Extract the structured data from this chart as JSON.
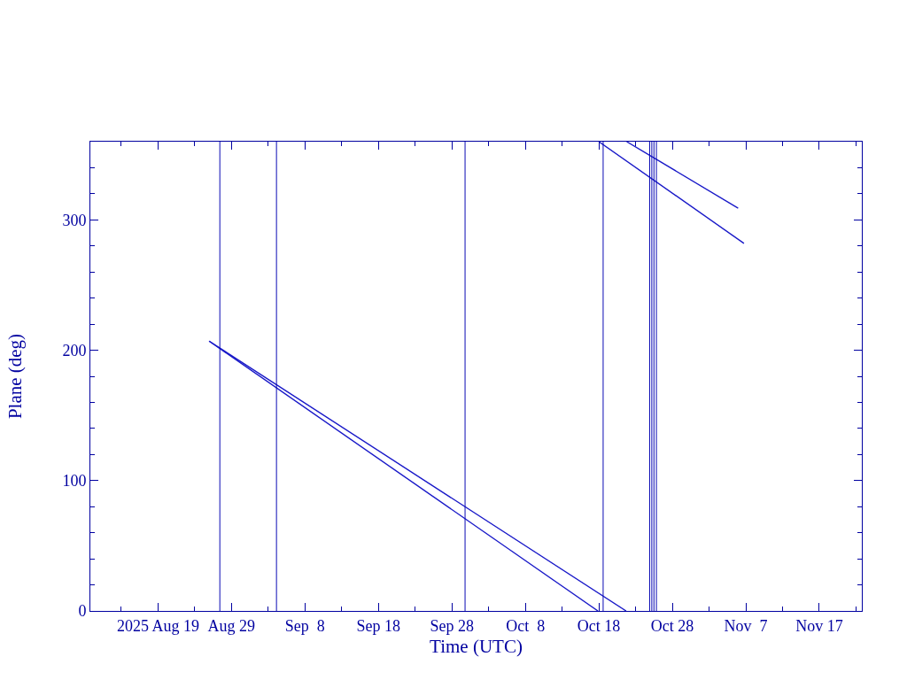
{
  "chart_data": {
    "type": "line",
    "xlabel": "Time (UTC)",
    "ylabel": "Plane (deg)",
    "xlim": [
      "2025-08-09T19:00",
      "2025-11-22T19:00"
    ],
    "ylim": [
      0,
      360
    ],
    "xticks": [
      {
        "value": "2025-08-14",
        "label": null
      },
      {
        "value": "2025-08-19",
        "label": "2025 Aug 19"
      },
      {
        "value": "2025-08-24",
        "label": null
      },
      {
        "value": "2025-08-29",
        "label": "Aug 29"
      },
      {
        "value": "2025-09-03",
        "label": null
      },
      {
        "value": "2025-09-08",
        "label": "Sep  8"
      },
      {
        "value": "2025-09-13",
        "label": null
      },
      {
        "value": "2025-09-18",
        "label": "Sep 18"
      },
      {
        "value": "2025-09-23",
        "label": null
      },
      {
        "value": "2025-09-28",
        "label": "Sep 28"
      },
      {
        "value": "2025-10-03",
        "label": null
      },
      {
        "value": "2025-10-08",
        "label": "Oct  8"
      },
      {
        "value": "2025-10-13",
        "label": null
      },
      {
        "value": "2025-10-18",
        "label": "Oct 18"
      },
      {
        "value": "2025-10-23",
        "label": null
      },
      {
        "value": "2025-10-28",
        "label": "Oct 28"
      },
      {
        "value": "2025-11-02",
        "label": null
      },
      {
        "value": "2025-11-07",
        "label": "Nov  7"
      },
      {
        "value": "2025-11-12",
        "label": null
      },
      {
        "value": "2025-11-17",
        "label": "Nov 17"
      },
      {
        "value": "2025-11-22",
        "label": null
      }
    ],
    "yticks": [
      0,
      {
        "value": 20,
        "label": null
      },
      {
        "value": 40,
        "label": null
      },
      {
        "value": 60,
        "label": null
      },
      {
        "value": 80,
        "label": null
      },
      100,
      {
        "value": 120,
        "label": null
      },
      {
        "value": 140,
        "label": null
      },
      {
        "value": 160,
        "label": null
      },
      {
        "value": 180,
        "label": null
      },
      200,
      {
        "value": 220,
        "label": null
      },
      {
        "value": 240,
        "label": null
      },
      {
        "value": 260,
        "label": null
      },
      {
        "value": 280,
        "label": null
      },
      300,
      {
        "value": 320,
        "label": null
      },
      {
        "value": 340,
        "label": null
      }
    ],
    "series": [
      {
        "color": "#1818c8",
        "x": [
          "2025-08-25T23:00",
          "2025-10-21T17:00",
          "2025-10-21T18:00",
          "2025-10-21T19:00",
          "2025-11-05T23:00"
        ],
        "values": [
          207,
          0,
          null,
          360,
          309
        ]
      },
      {
        "color": "#1818c8",
        "x": [
          "2025-08-25T23:00",
          "2025-10-17T21:00",
          "2025-10-17T22:00",
          "2025-10-18T00:00",
          "2025-11-06T18:00"
        ],
        "values": [
          207,
          0,
          null,
          360,
          282
        ]
      }
    ],
    "ref_lines": [
      {
        "axis": "x",
        "value": "2025-08-27T10:00",
        "color": "#0a0ab4"
      },
      {
        "axis": "x",
        "value": "2025-09-04T03:00",
        "color": "#0a0ab4"
      },
      {
        "axis": "x",
        "value": "2025-09-29T19:00",
        "color": "#0a0ab4"
      },
      {
        "axis": "x",
        "value": "2025-10-18T14:00",
        "color": "#0a0ab4"
      },
      {
        "axis": "x",
        "value": "2025-10-24T22:00",
        "color": "#0a0ab4"
      },
      {
        "axis": "x",
        "value": "2025-10-25T05:00",
        "color": "#0a0ab4"
      },
      {
        "axis": "x",
        "value": "2025-10-25T12:00",
        "color": "#0a0ab4"
      },
      {
        "axis": "x",
        "value": "2025-10-25T20:00",
        "color": "#0a0ab4"
      }
    ]
  }
}
